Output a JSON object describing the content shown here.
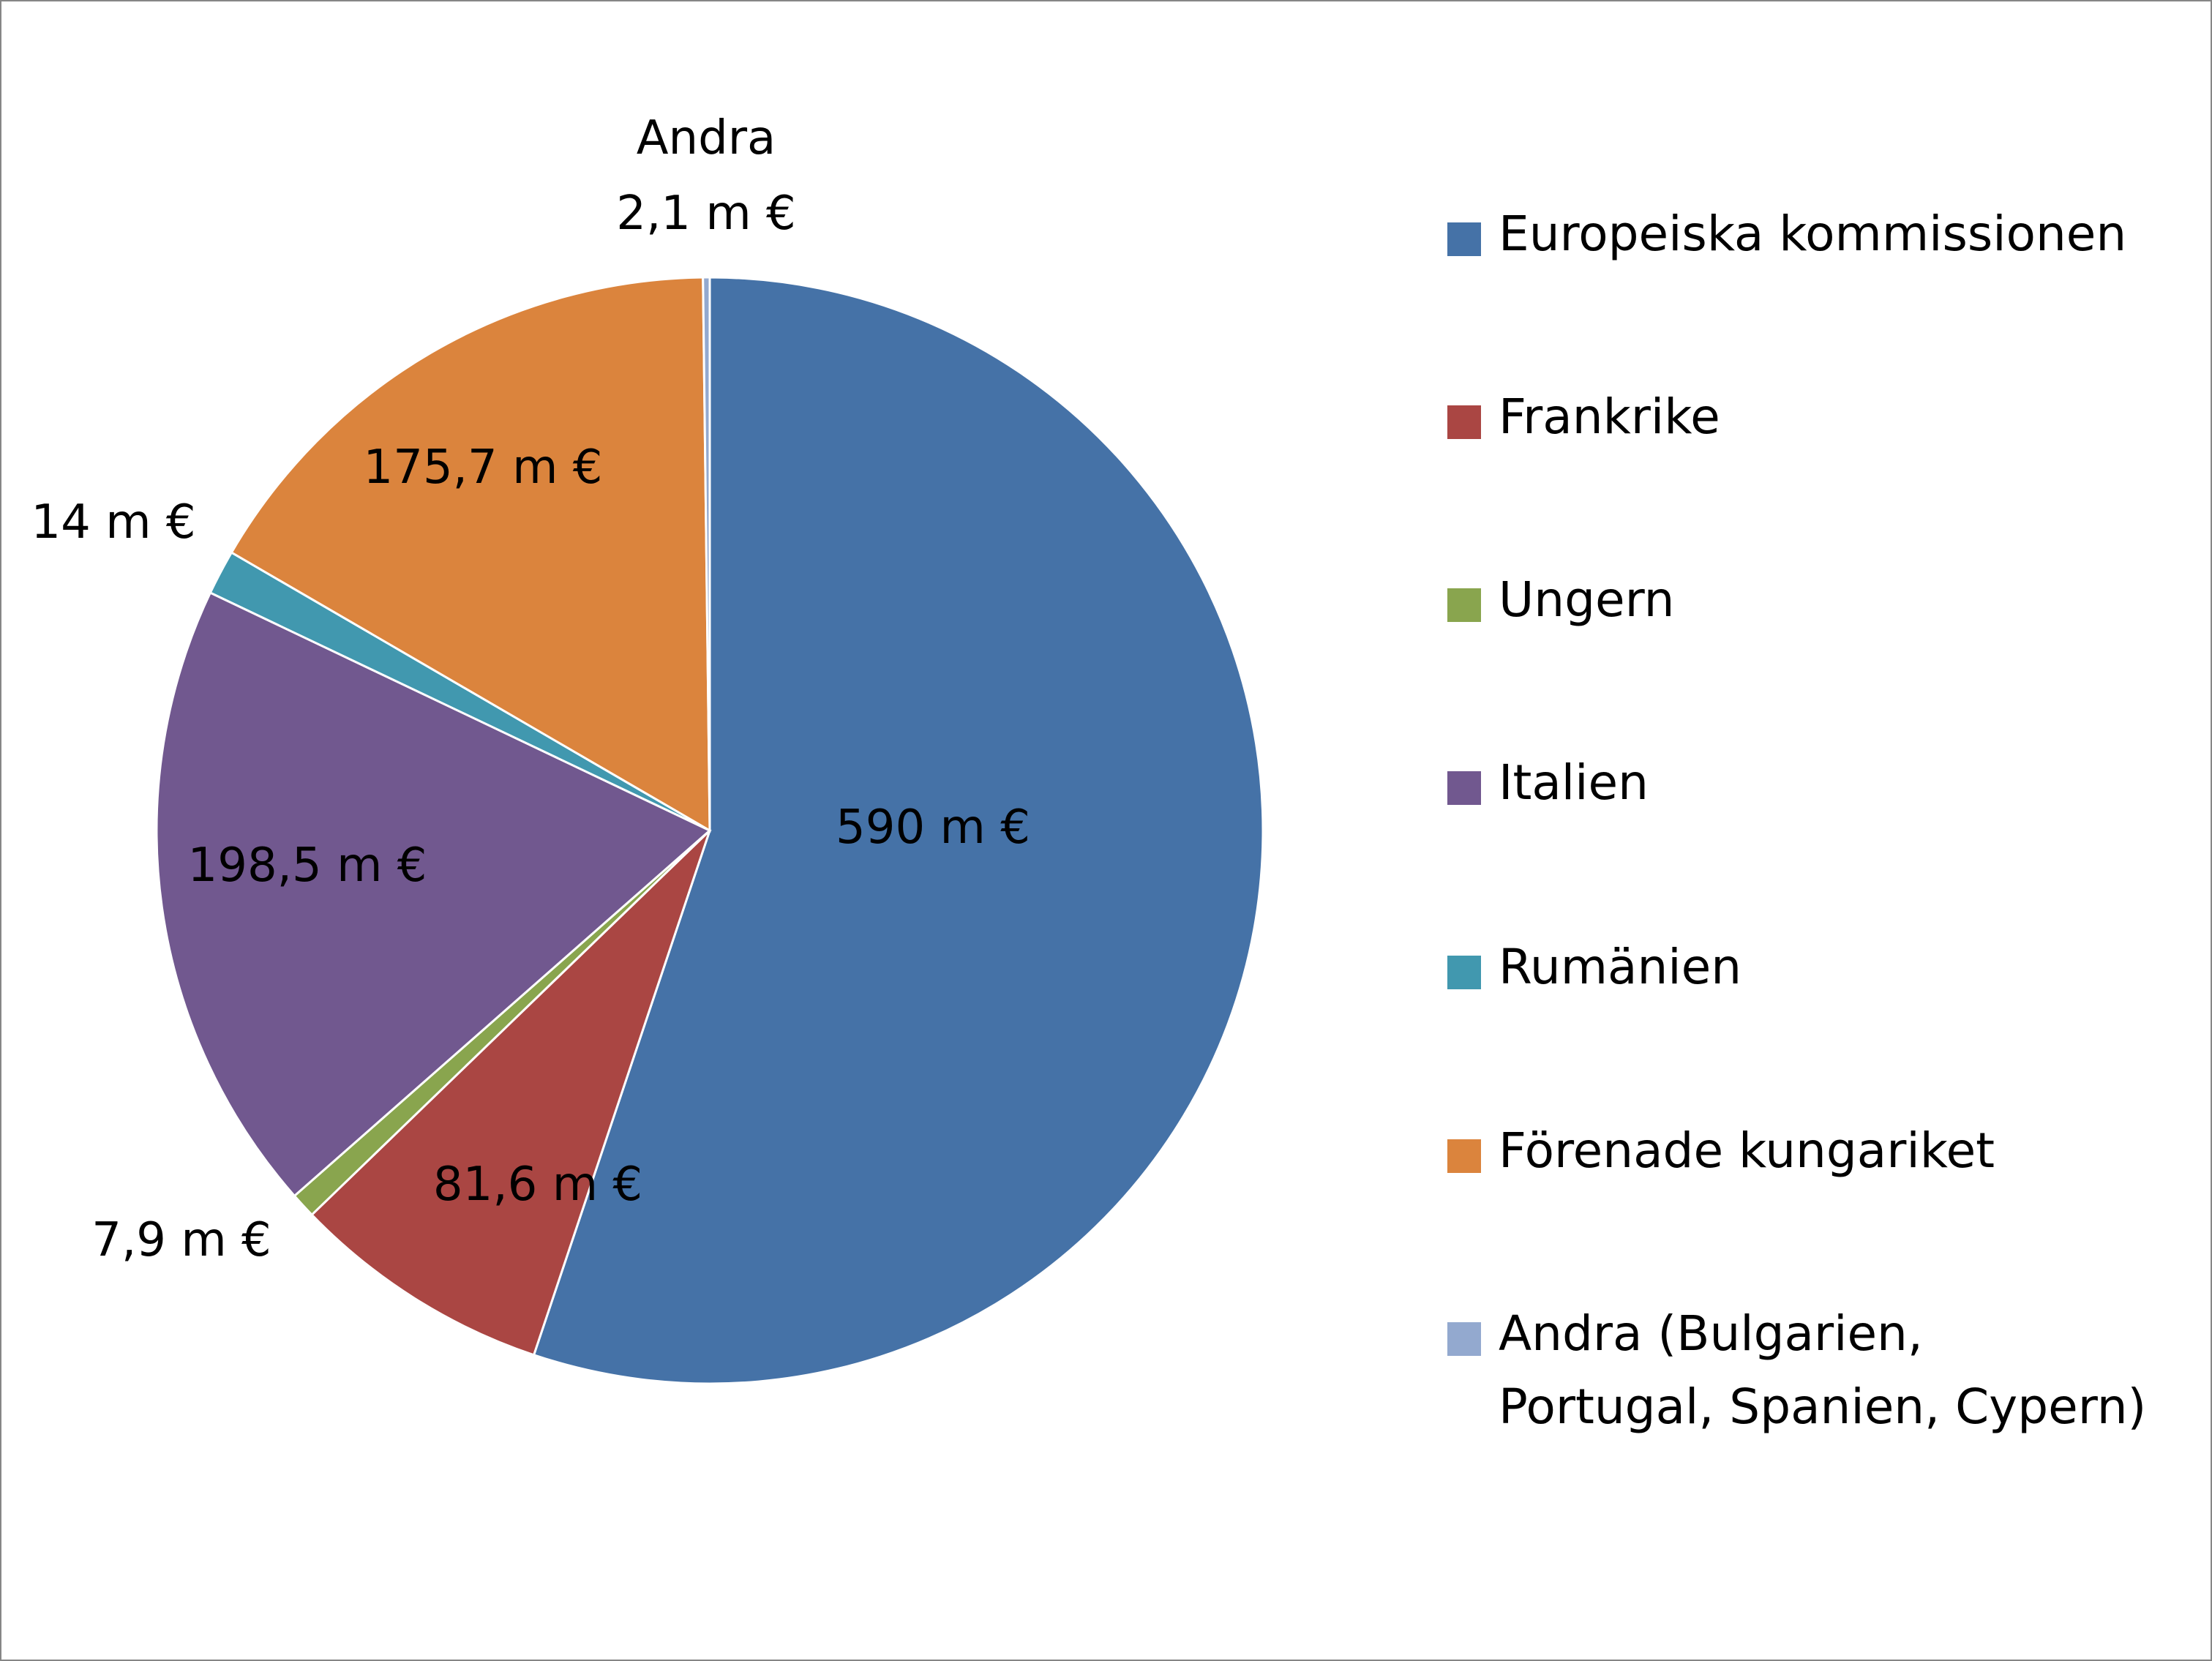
{
  "chart_data": {
    "type": "pie",
    "title": "",
    "slices": [
      {
        "name": "Europeiska kommissionen",
        "value": 590,
        "label": "590 m €",
        "color": "#4572A7"
      },
      {
        "name": "Frankrike",
        "value": 81.6,
        "label": "81,6 m €",
        "color": "#AA4643"
      },
      {
        "name": "Ungern",
        "value": 7.9,
        "label": "7,9 m €",
        "color": "#89A54E"
      },
      {
        "name": "Italien",
        "value": 198.5,
        "label": "198,5 m €",
        "color": "#71588F"
      },
      {
        "name": "Rumänien",
        "value": 14,
        "label": "14 m €",
        "color": "#4198AF"
      },
      {
        "name": "Förenade kungariket",
        "value": 175.7,
        "label": "175,7 m €",
        "color": "#DB843D"
      },
      {
        "name": "Andra (Bulgarien, Portugal, Spanien, Cypern)",
        "value": 2.1,
        "label": "2,1 m €",
        "label_prefix": "Andra",
        "color": "#93A9CF"
      }
    ],
    "legend": {
      "placement": "right",
      "entries": [
        {
          "lines": [
            "Europeiska kommissionen"
          ]
        },
        {
          "lines": [
            "Frankrike"
          ]
        },
        {
          "lines": [
            "Ungern"
          ]
        },
        {
          "lines": [
            "Italien"
          ]
        },
        {
          "lines": [
            "Rumänien"
          ]
        },
        {
          "lines": [
            "Förenade kungariket"
          ]
        },
        {
          "lines": [
            "Andra (Bulgarien,",
            "Portugal, Spanien, Cypern)"
          ]
        }
      ]
    }
  }
}
